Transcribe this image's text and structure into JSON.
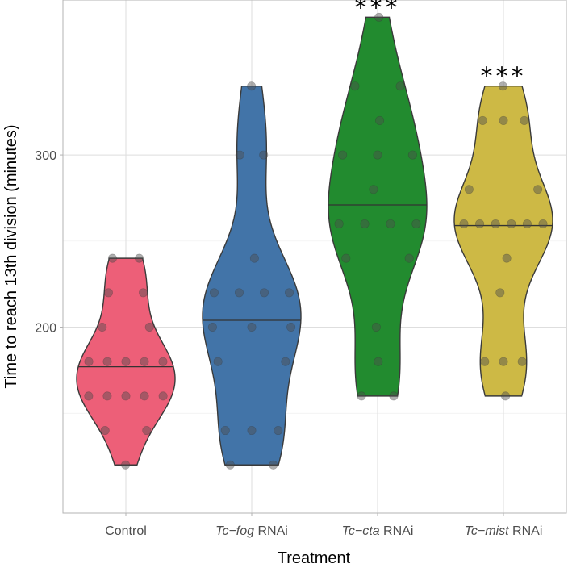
{
  "chart_data": {
    "type": "violin",
    "xlabel": "Treatment",
    "ylabel": "Time to reach 13th division (minutes)",
    "ylim": [
      92,
      390
    ],
    "yticks": [
      200,
      300
    ],
    "grid": true,
    "categories": [
      {
        "label": "Control",
        "italic": "",
        "suffix": ""
      },
      {
        "label": "",
        "italic": "Tc−fog",
        "suffix": " RNAi"
      },
      {
        "label": "",
        "italic": "Tc−cta",
        "suffix": " RNAi"
      },
      {
        "label": "",
        "italic": "Tc−mist",
        "suffix": " RNAi"
      }
    ],
    "series": [
      {
        "color": "#ED5F78",
        "median": 177,
        "significance": "",
        "points": [
          120,
          140,
          140,
          160,
          160,
          160,
          160,
          160,
          180,
          180,
          180,
          180,
          180,
          200,
          200,
          220,
          220,
          240,
          240
        ]
      },
      {
        "color": "#4274A8",
        "median": 204,
        "significance": "",
        "points": [
          120,
          120,
          140,
          140,
          140,
          180,
          180,
          200,
          200,
          200,
          220,
          220,
          220,
          220,
          240,
          300,
          300,
          340
        ]
      },
      {
        "color": "#228B2F",
        "median": 271,
        "significance": "***",
        "points": [
          160,
          160,
          180,
          200,
          240,
          240,
          260,
          260,
          260,
          260,
          280,
          300,
          300,
          300,
          320,
          340,
          340,
          380
        ]
      },
      {
        "color": "#CDB945",
        "median": 259,
        "significance": "***",
        "points": [
          160,
          180,
          180,
          180,
          220,
          240,
          260,
          260,
          260,
          260,
          260,
          260,
          280,
          280,
          320,
          320,
          320,
          340
        ]
      }
    ]
  }
}
